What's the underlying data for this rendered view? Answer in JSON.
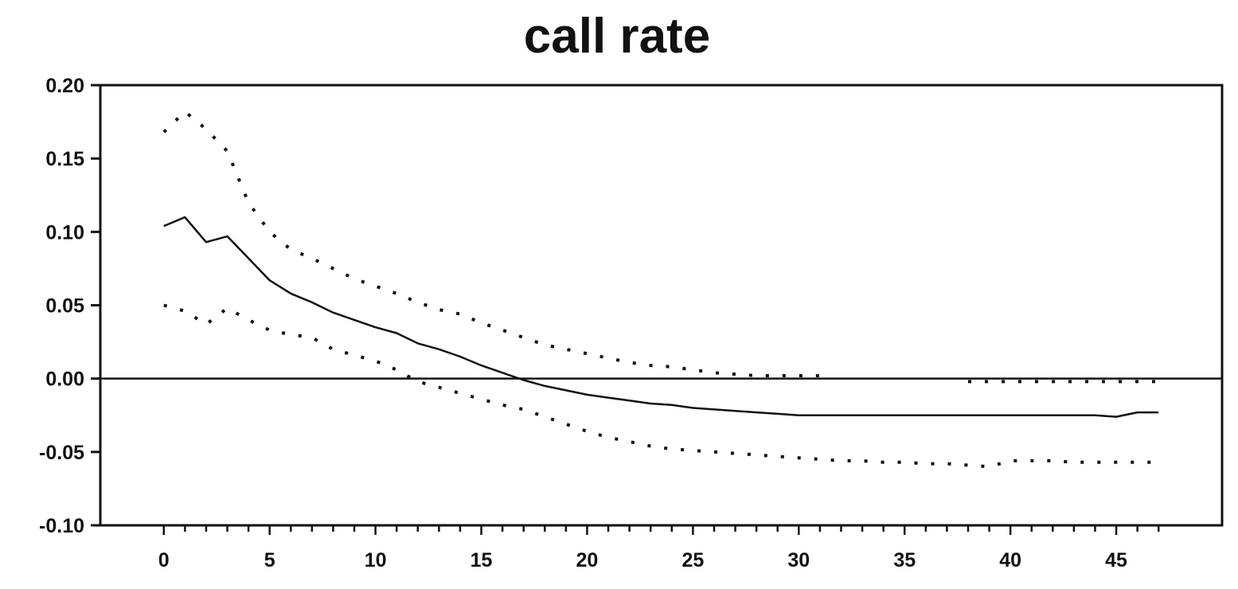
{
  "chart_data": {
    "type": "line",
    "title": "call rate",
    "xlabel": "",
    "ylabel": "",
    "xlim": [
      -3,
      50
    ],
    "ylim": [
      -0.1,
      0.2
    ],
    "x_ticks": [
      0,
      5,
      10,
      15,
      20,
      25,
      30,
      35,
      40,
      45
    ],
    "x_tick_labels": [
      "0",
      "5",
      "10",
      "15",
      "20",
      "25",
      "30",
      "35",
      "40",
      "45"
    ],
    "y_ticks": [
      0.2,
      0.15,
      0.1,
      0.05,
      0.0,
      -0.05,
      -0.1
    ],
    "y_tick_labels": [
      "0.20",
      "0.15",
      "0.10",
      "0.05",
      "0.00",
      "-0.05",
      "-0.10"
    ],
    "zero_line": true,
    "grid": false,
    "legend": "none",
    "series": [
      {
        "style": "solid",
        "x": [
          0,
          1,
          2,
          3,
          4,
          5,
          6,
          7,
          8,
          9,
          10,
          11,
          12,
          13,
          14,
          15,
          16,
          17,
          18,
          19,
          20,
          21,
          22,
          23,
          24,
          25,
          26,
          27,
          28,
          29,
          30,
          31,
          32,
          33,
          34,
          35,
          36,
          37,
          38,
          39,
          40,
          41,
          42,
          43,
          44,
          45,
          46,
          47
        ],
        "y": [
          0.104,
          0.11,
          0.093,
          0.097,
          0.082,
          0.067,
          0.058,
          0.052,
          0.045,
          0.04,
          0.035,
          0.031,
          0.024,
          0.02,
          0.015,
          0.009,
          0.004,
          -0.001,
          -0.005,
          -0.008,
          -0.011,
          -0.013,
          -0.015,
          -0.017,
          -0.018,
          -0.02,
          -0.021,
          -0.022,
          -0.023,
          -0.024,
          -0.025,
          -0.025,
          -0.025,
          -0.025,
          -0.025,
          -0.025,
          -0.025,
          -0.025,
          -0.025,
          -0.025,
          -0.025,
          -0.025,
          -0.025,
          -0.025,
          -0.025,
          -0.026,
          -0.023,
          -0.023
        ]
      },
      {
        "style": "dotted",
        "x": [
          0,
          1,
          2,
          3,
          4,
          5,
          6,
          7,
          8,
          9,
          10,
          11,
          12,
          13,
          14,
          15,
          16,
          17,
          18,
          19,
          20,
          21,
          22,
          23,
          24,
          25,
          26,
          27,
          28,
          29,
          30,
          31
        ],
        "y": [
          0.168,
          0.182,
          0.17,
          0.155,
          0.12,
          0.1,
          0.088,
          0.082,
          0.075,
          0.068,
          0.063,
          0.058,
          0.052,
          0.047,
          0.044,
          0.038,
          0.033,
          0.028,
          0.023,
          0.02,
          0.017,
          0.014,
          0.011,
          0.009,
          0.008,
          0.006,
          0.004,
          0.003,
          0.002,
          0.002,
          0.002,
          0.002
        ]
      },
      {
        "style": "dotted",
        "x": [
          38,
          39,
          40,
          41,
          42,
          43,
          44,
          45,
          46,
          47
        ],
        "y": [
          -0.002,
          -0.002,
          -0.002,
          -0.002,
          -0.002,
          -0.002,
          -0.002,
          -0.002,
          -0.002,
          -0.002
        ]
      },
      {
        "style": "dotted",
        "x": [
          0,
          1,
          2,
          3,
          4,
          5,
          6,
          7,
          8,
          9,
          10,
          11,
          12,
          13,
          14,
          15,
          16,
          17,
          18,
          19,
          20,
          21,
          22,
          23,
          24,
          25,
          26,
          27,
          28,
          29,
          30,
          31,
          32,
          33,
          34,
          35,
          36,
          37,
          38,
          39,
          40,
          41,
          42,
          43,
          44,
          45,
          46,
          47
        ],
        "y": [
          0.05,
          0.046,
          0.037,
          0.048,
          0.04,
          0.033,
          0.03,
          0.028,
          0.02,
          0.016,
          0.012,
          0.006,
          -0.002,
          -0.006,
          -0.01,
          -0.014,
          -0.018,
          -0.021,
          -0.026,
          -0.031,
          -0.036,
          -0.04,
          -0.043,
          -0.046,
          -0.048,
          -0.049,
          -0.05,
          -0.051,
          -0.052,
          -0.053,
          -0.054,
          -0.055,
          -0.056,
          -0.056,
          -0.057,
          -0.057,
          -0.058,
          -0.058,
          -0.059,
          -0.06,
          -0.056,
          -0.056,
          -0.056,
          -0.057,
          -0.057,
          -0.057,
          -0.057,
          -0.057
        ]
      }
    ]
  }
}
